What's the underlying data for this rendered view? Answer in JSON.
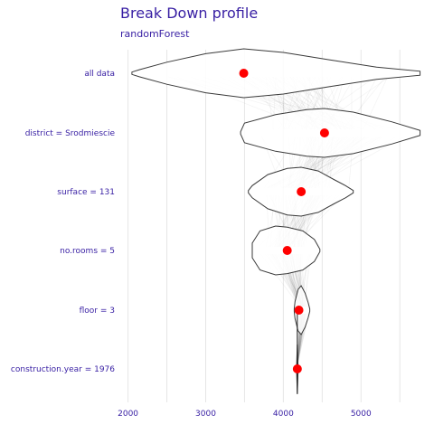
{
  "title": "Break Down profile",
  "subtitle": "randomForest",
  "chart_data": {
    "type": "violin",
    "title": "Break Down profile",
    "subtitle": "randomForest",
    "xlabel": "",
    "ylabel": "",
    "xlim": [
      1900,
      5800
    ],
    "x_ticks": [
      2000,
      3000,
      4000,
      5000
    ],
    "x_tick_labels": [
      "2000",
      "3000",
      "4000",
      "5000"
    ],
    "grid": true,
    "legend": "none",
    "rows": [
      {
        "label": "all data",
        "mean": 3490,
        "min": 2050,
        "max": 5760,
        "profile": [
          [
            2050,
            0.05
          ],
          [
            2150,
            0.15
          ],
          [
            2500,
            0.45
          ],
          [
            3000,
            0.8
          ],
          [
            3490,
            1.0
          ],
          [
            4000,
            0.85
          ],
          [
            4600,
            0.55
          ],
          [
            5200,
            0.25
          ],
          [
            5760,
            0.08
          ]
        ]
      },
      {
        "label": "district = Srodmiescie",
        "mean": 4530,
        "min": 3450,
        "max": 5760,
        "profile": [
          [
            3450,
            0.05
          ],
          [
            3500,
            0.4
          ],
          [
            3900,
            0.75
          ],
          [
            4300,
            0.95
          ],
          [
            4530,
            1.0
          ],
          [
            4900,
            0.85
          ],
          [
            5400,
            0.45
          ],
          [
            5760,
            0.1
          ]
        ]
      },
      {
        "label": "surface = 131",
        "mean": 4230,
        "min": 3550,
        "max": 4900,
        "profile": [
          [
            3550,
            0.05
          ],
          [
            3600,
            0.25
          ],
          [
            3800,
            0.7
          ],
          [
            4050,
            0.95
          ],
          [
            4230,
            1.0
          ],
          [
            4450,
            0.85
          ],
          [
            4650,
            0.5
          ],
          [
            4800,
            0.25
          ],
          [
            4900,
            0.05
          ]
        ]
      },
      {
        "label": "no.rooms = 5",
        "mean": 4050,
        "min": 3600,
        "max": 4470,
        "profile": [
          [
            3600,
            0.3
          ],
          [
            3700,
            0.8
          ],
          [
            3900,
            1.0
          ],
          [
            4050,
            0.95
          ],
          [
            4250,
            0.8
          ],
          [
            4400,
            0.45
          ],
          [
            4470,
            0.05
          ]
        ]
      },
      {
        "label": "floor = 3",
        "mean": 4200,
        "min": 4140,
        "max": 4340,
        "profile": [
          [
            4140,
            0.05
          ],
          [
            4150,
            0.35
          ],
          [
            4190,
            0.85
          ],
          [
            4230,
            1.0
          ],
          [
            4280,
            0.7
          ],
          [
            4320,
            0.3
          ],
          [
            4340,
            0.05
          ]
        ]
      },
      {
        "label": "construction.year = 1976",
        "mean": 4180,
        "min": 4170,
        "max": 4190,
        "profile": [
          [
            4170,
            0.05
          ],
          [
            4175,
            0.5
          ],
          [
            4180,
            1.0
          ],
          [
            4185,
            0.5
          ],
          [
            4190,
            0.05
          ]
        ]
      }
    ]
  }
}
